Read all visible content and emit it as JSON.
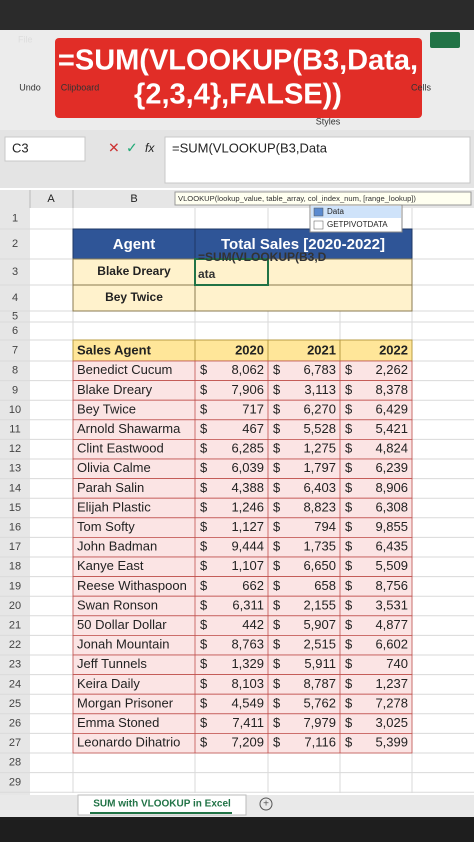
{
  "ribbon": {
    "menu": "File",
    "groups": [
      "Undo",
      "Clipboard",
      "Cells",
      "Styles"
    ]
  },
  "banner": {
    "lines": [
      "=SUM(VLOOKUP(B3,Data,",
      "{2,3,4},FALSE))"
    ]
  },
  "formula_bar": {
    "name_box": "C3",
    "fx": "fx",
    "formula": "=SUM(VLOOKUP(B3,Data"
  },
  "tooltip": "VLOOKUP(lookup_value, table_array, col_index_num, [range_lookup])",
  "autocomplete": [
    "Data",
    "GETPIVOTDATA"
  ],
  "columns": [
    "A",
    "B"
  ],
  "rows": [
    "1",
    "2",
    "3",
    "4",
    "5",
    "6",
    "7",
    "8",
    "9",
    "10",
    "11",
    "12",
    "13",
    "14",
    "15",
    "16",
    "17",
    "18",
    "19",
    "20",
    "21",
    "22",
    "23",
    "24",
    "25",
    "26",
    "27",
    "28",
    "29"
  ],
  "lookup_table": {
    "headers": [
      "Agent",
      "Total Sales [2020-2022]"
    ],
    "rows": [
      "Blake Dreary",
      "Bey Twice"
    ],
    "editing": [
      "=SUM(VLOOKUP(B3,D",
      "ata"
    ]
  },
  "sales_table": {
    "headers": [
      "Sales Agent",
      "2020",
      "2021",
      "2022"
    ],
    "currency": "$",
    "rows": [
      [
        "Benedict Cucum",
        "8,062",
        "6,783",
        "2,262"
      ],
      [
        "Blake Dreary",
        "7,906",
        "3,113",
        "8,378"
      ],
      [
        "Bey Twice",
        "717",
        "6,270",
        "6,429"
      ],
      [
        "Arnold Shawarma",
        "467",
        "5,528",
        "5,421"
      ],
      [
        "Clint Eastwood",
        "6,285",
        "1,275",
        "4,824"
      ],
      [
        "Olivia Calme",
        "6,039",
        "1,797",
        "6,239"
      ],
      [
        "Parah Salin",
        "4,388",
        "6,403",
        "8,906"
      ],
      [
        "Elijah Plastic",
        "1,246",
        "8,823",
        "6,308"
      ],
      [
        "Tom Softy",
        "1,127",
        "794",
        "9,855"
      ],
      [
        "John Badman",
        "9,444",
        "1,735",
        "6,435"
      ],
      [
        "Kanye East",
        "1,107",
        "6,650",
        "5,509"
      ],
      [
        "Reese Withaspoon",
        "662",
        "658",
        "8,756"
      ],
      [
        "Swan Ronson",
        "6,311",
        "2,155",
        "3,531"
      ],
      [
        "50 Dollar Dollar",
        "442",
        "5,907",
        "4,877"
      ],
      [
        "Jonah Mountain",
        "8,763",
        "2,515",
        "6,602"
      ],
      [
        "Jeff Tunnels",
        "1,329",
        "5,911",
        "740"
      ],
      [
        "Keira Daily",
        "8,103",
        "8,787",
        "1,237"
      ],
      [
        "Morgan Prisoner",
        "4,549",
        "5,762",
        "7,278"
      ],
      [
        "Emma Stoned",
        "7,411",
        "7,979",
        "3,025"
      ],
      [
        "Leonardo Dihatrio",
        "7,209",
        "7,116",
        "5,399"
      ]
    ]
  },
  "sheet_tab": "SUM with VLOOKUP in Excel"
}
